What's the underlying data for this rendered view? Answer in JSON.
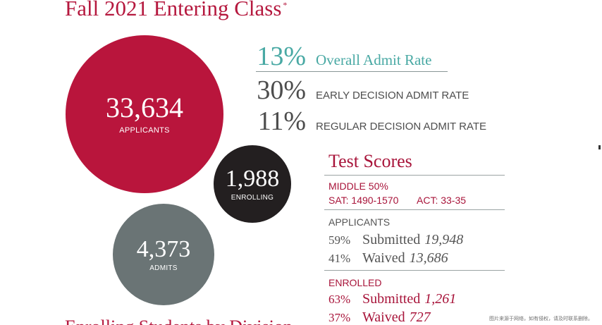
{
  "title": "Fall 2021 Entering Class",
  "title_mark": "*",
  "circles": {
    "applicants": {
      "value": "33,634",
      "label": "APPLICANTS",
      "color": "#b9153c"
    },
    "enrolling": {
      "value": "1,988",
      "label": "ENROLLING",
      "color": "#231f20"
    },
    "admits": {
      "value": "4,373",
      "label": "ADMITS",
      "color": "#6a7475"
    }
  },
  "admit_rates": {
    "overall": {
      "pct": "13%",
      "label": "Overall Admit Rate",
      "color": "#49a9a4"
    },
    "early": {
      "pct": "30%",
      "label": "EARLY DECISION ADMIT RATE"
    },
    "regular": {
      "pct": "11%",
      "label": "REGULAR DECISION ADMIT RATE"
    }
  },
  "test_scores": {
    "title": "Test Scores",
    "middle50": {
      "header": "MIDDLE 50%",
      "sat": "SAT: 1490-1570",
      "act": "ACT: 33-35"
    },
    "applicants": {
      "header": "APPLICANTS",
      "submitted": {
        "pct": "59%",
        "label": "Submitted",
        "count": "19,948"
      },
      "waived": {
        "pct": "41%",
        "label": "Waived",
        "count": "13,686"
      }
    },
    "enrolled": {
      "header": "ENROLLED",
      "submitted": {
        "pct": "63%",
        "label": "Submitted",
        "count": "1,261"
      },
      "waived": {
        "pct": "37%",
        "label": "Waived",
        "count": "727"
      }
    }
  },
  "bottom_heading": "Enrolling Students by Division",
  "watermark": "图片来源于网络，如有侵权，请及时联系删除。"
}
